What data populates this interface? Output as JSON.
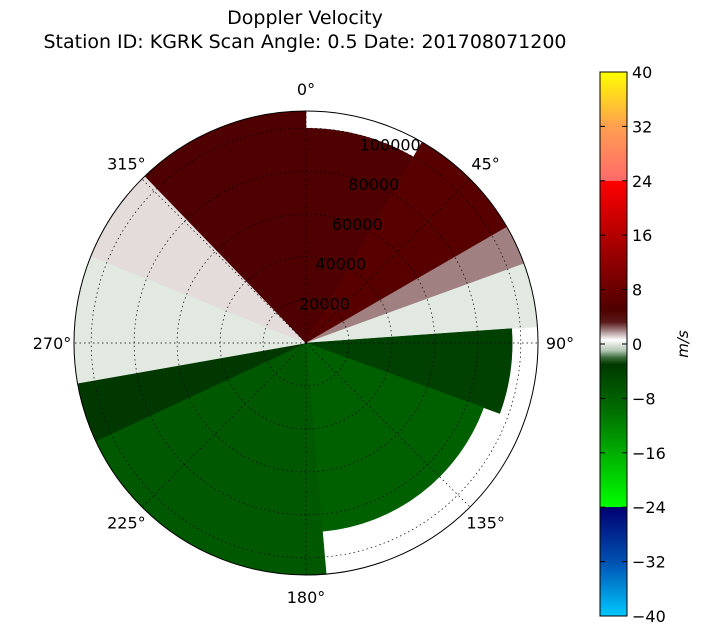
{
  "chart_data": {
    "type": "heatmap",
    "projection": "polar",
    "title": "Doppler Velocity",
    "subtitle": "Station ID: KGRK  Scan Angle: 0.5  Date: 201708071200",
    "angle_ticks": [
      {
        "deg": 0,
        "label": "0°"
      },
      {
        "deg": 45,
        "label": "45°"
      },
      {
        "deg": 90,
        "label": "90°"
      },
      {
        "deg": 135,
        "label": "135°"
      },
      {
        "deg": 180,
        "label": "180°"
      },
      {
        "deg": 225,
        "label": "225°"
      },
      {
        "deg": 270,
        "label": "270°"
      },
      {
        "deg": 315,
        "label": "315°"
      }
    ],
    "angle_direction": "clockwise",
    "angle_zero": "top",
    "radial_ticks": [
      {
        "value": 20000,
        "label": "20000"
      },
      {
        "value": 40000,
        "label": "40000"
      },
      {
        "value": 60000,
        "label": "60000"
      },
      {
        "value": 80000,
        "label": "80000"
      },
      {
        "value": 100000,
        "label": "100000"
      }
    ],
    "rlim": [
      0,
      108000
    ],
    "grid": true,
    "colorbar": {
      "label": "m/s",
      "range": [
        -40,
        40
      ],
      "ticks": [
        {
          "value": 40,
          "label": "40"
        },
        {
          "value": 32,
          "label": "32"
        },
        {
          "value": 24,
          "label": "24"
        },
        {
          "value": 16,
          "label": "16"
        },
        {
          "value": 8,
          "label": "8"
        },
        {
          "value": 0,
          "label": "0"
        },
        {
          "value": -8,
          "label": "−8"
        },
        {
          "value": -16,
          "label": "−16"
        },
        {
          "value": -24,
          "label": "−24"
        },
        {
          "value": -32,
          "label": "−32"
        },
        {
          "value": -40,
          "label": "−40"
        }
      ],
      "stops": [
        {
          "v": 40,
          "color": "#ffff00"
        },
        {
          "v": 32,
          "color": "#ff9f50"
        },
        {
          "v": 24.01,
          "color": "#ff6a6a"
        },
        {
          "v": 23.99,
          "color": "#ff0000"
        },
        {
          "v": 14,
          "color": "#a00000"
        },
        {
          "v": 5,
          "color": "#4f0000"
        },
        {
          "v": 3.2,
          "color": "#5a1a1a"
        },
        {
          "v": 2,
          "color": "#a08080"
        },
        {
          "v": 0.6,
          "color": "#ffffff"
        },
        {
          "v": -1,
          "color": "#b0c4b0"
        },
        {
          "v": -2,
          "color": "#3a6a3a"
        },
        {
          "v": -3,
          "color": "#003800"
        },
        {
          "v": -10,
          "color": "#007000"
        },
        {
          "v": -23.99,
          "color": "#00ff00"
        },
        {
          "v": -24.01,
          "color": "#000070"
        },
        {
          "v": -32,
          "color": "#0050b0"
        },
        {
          "v": -40,
          "color": "#00c8ff"
        }
      ]
    },
    "field_sectors": [
      {
        "start": 0,
        "end": 30,
        "r_max": 100000,
        "velocity": 5
      },
      {
        "start": 30,
        "end": 60,
        "r_max": 108000,
        "velocity": 6
      },
      {
        "start": 60,
        "end": 70,
        "r_max": 108000,
        "velocity": 2
      },
      {
        "start": 70,
        "end": 86,
        "r_max": 108000,
        "velocity": 0
      },
      {
        "start": 86,
        "end": 110,
        "r_max": 96000,
        "velocity": -4
      },
      {
        "start": 110,
        "end": 175,
        "r_max": 88000,
        "velocity": -8
      },
      {
        "start": 175,
        "end": 245,
        "r_max": 108000,
        "velocity": -7
      },
      {
        "start": 245,
        "end": 260,
        "r_max": 108000,
        "velocity": -3
      },
      {
        "start": 260,
        "end": 292,
        "r_max": 108000,
        "velocity": 0
      },
      {
        "start": 292,
        "end": 316,
        "r_max": 108000,
        "velocity": 1
      },
      {
        "start": 316,
        "end": 360,
        "r_max": 108000,
        "velocity": 5
      }
    ]
  }
}
